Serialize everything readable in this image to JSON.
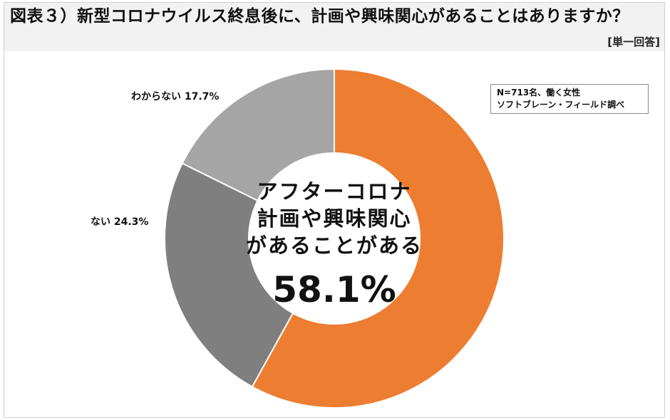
{
  "header": {
    "title": "図表３）新型コロナウイルス終息後に、計画や興味関心があることはありますか？",
    "answer_type": "[単一回答]"
  },
  "source_note": {
    "line1": "N=713名、働く女性",
    "line2": "ソフトブレーン・フィールド調べ"
  },
  "center": {
    "line1": "アフターコロナ",
    "line2": "計画や興味関心",
    "line3": "があることがある",
    "value": "58.1%"
  },
  "labels": {
    "unknown": "わからない 17.7%",
    "no": "ない 24.3%"
  },
  "chart_data": {
    "type": "pie",
    "variant": "donut",
    "title": "図表３）新型コロナウイルス終息後に、計画や興味関心があることはありますか？",
    "subtitle": "[単一回答]",
    "categories": [
      "あることがある",
      "ない",
      "わからない"
    ],
    "values": [
      58.1,
      24.3,
      17.7
    ],
    "unit": "%",
    "colors": [
      "#ed7d31",
      "#7f7f7f",
      "#a5a5a5"
    ],
    "start_angle_deg": 0,
    "direction": "clockwise",
    "annotations": [
      "N=713名、働く女性",
      "ソフトブレーン・フィールド調べ",
      "アフターコロナ 計画や興味関心があることがある 58.1%"
    ],
    "legend": "none (direct labels)"
  }
}
